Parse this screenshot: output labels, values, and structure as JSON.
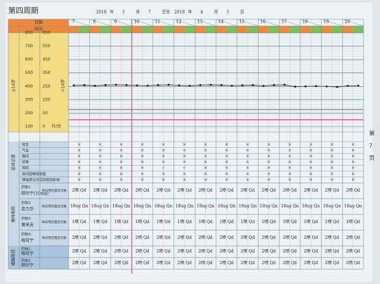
{
  "header": {
    "title": "第四周期",
    "date_parts": [
      "2018",
      "年",
      "3",
      "月",
      "7",
      "日至",
      "2018",
      "年",
      "4",
      "月",
      "3",
      "日"
    ]
  },
  "table": {
    "date_label": "日期",
    "time_label": "时间",
    "days": [
      "7",
      "8",
      "9",
      "10",
      "11",
      "12",
      "13",
      "14",
      "15",
      "16",
      "17",
      "18",
      "19",
      "20"
    ]
  },
  "peak_flow": {
    "axis_label": "≥14岁",
    "axis2_label": "<14岁",
    "unit": "升/分",
    "ylim": [
      100,
      800
    ],
    "yticks": [
      800,
      700,
      600,
      500,
      400,
      300,
      200,
      100
    ],
    "y2_labels": [
      "650",
      "550",
      "450",
      "350",
      "250",
      "150",
      "50",
      "0"
    ],
    "values": [
      408,
      410,
      405,
      410,
      412,
      410,
      408,
      406,
      410,
      412,
      408,
      405,
      410,
      412,
      410,
      406,
      408,
      410,
      404,
      410,
      412,
      398,
      400,
      402,
      400,
      396,
      404,
      406
    ]
  },
  "symptoms": {
    "section": "症状记录",
    "rows": [
      {
        "label": "喘息",
        "marks": [
          "×",
          "×",
          "×",
          "×",
          "×",
          "×",
          "×",
          "×",
          "×",
          "×",
          "×",
          "×",
          "×",
          "×"
        ]
      },
      {
        "label": "气急",
        "marks": [
          "×",
          "×",
          "×",
          "×",
          "×",
          "×",
          "×",
          "×",
          "×",
          "×",
          "×",
          "×",
          "×",
          "×"
        ]
      },
      {
        "label": "胸闷",
        "marks": [
          "×",
          "×",
          "×",
          "×",
          "×",
          "×",
          "×",
          "×",
          "×",
          "×",
          "×",
          "×",
          "×",
          "×"
        ]
      },
      {
        "label": "咳嗽",
        "marks": [
          "×",
          "×",
          "×",
          "×",
          "×",
          "×",
          "×",
          "×",
          "×",
          "×",
          "×",
          "×",
          "×",
          "×"
        ]
      },
      {
        "label": "喘鸣",
        "marks": [
          "×",
          "×",
          "×",
          "×",
          "√",
          "√",
          "×",
          "×",
          "×",
          "×",
          "×",
          "×",
          "×",
          "×"
        ]
      },
      {
        "label": "夜间因哮喘憋醒",
        "marks": [
          "×",
          "×",
          "×",
          "×",
          "×",
          "×",
          "×",
          "×",
          "×",
          "×",
          "×",
          "×",
          "×",
          "×"
        ]
      },
      {
        "label": "哮喘使日间活动受到影响",
        "marks": [
          "×",
          "×",
          "×",
          "×",
          "×",
          "×",
          "×",
          "×",
          "×",
          "×",
          "×",
          "×",
          "×",
          "×"
        ]
      }
    ]
  },
  "maintenance": {
    "section": "维持用药",
    "note": "每日用药量及次数",
    "rows": [
      {
        "drug": "药物1:",
        "name": "顺尔宁(10mg)",
        "entries": [
          "2喷 Qd",
          "2喷 Qd",
          "2喷 Qd",
          "2喷 Qd",
          "2喷 Qd",
          "2喷 Qd",
          "2喷 Qd",
          "2喷 Qd",
          "2喷 Qd",
          "2喷 Qd",
          "2喷 Qd",
          "2喷 Qd",
          "2喷 Qd",
          "2喷 Qd"
        ]
      },
      {
        "drug": "药物2:",
        "name": "思力华",
        "entries": [
          "18ug Qn",
          "18ug Qn",
          "18ug Qn",
          "18ug Qn",
          "18ug Qn",
          "18ug Qn",
          "18ug Qn",
          "18ug Qn",
          "18ug Qn",
          "18ug Qn",
          "18ug Qn",
          "18ug Qn",
          "18ug Qn",
          "18ug Qn"
        ]
      },
      {
        "drug": "药物3:",
        "name": "普米克",
        "entries": [
          "1喷 Qd",
          "1喷 Qd",
          "1喷 Qd",
          "1喷 Qd",
          "1喷 Qd",
          "1喷 Qd",
          "1喷 Qd",
          "1喷 Qd",
          "1喷 Qd",
          "1喷 Qd",
          "1喷 Qd",
          "1喷 Qd",
          "1喷 Qd",
          "1喷 Qd"
        ]
      },
      {
        "drug": "药物4:",
        "name": "喘可宁",
        "entries": [
          "2喷 Qd",
          "2喷 Qd",
          "2喷 Qd",
          "2喷 Qd",
          "2喷 Qd",
          "2喷 Qd",
          "2喷 Qd",
          "2喷 Qd",
          "2喷 Qd",
          "2喷 Qd",
          "2喷 Qd",
          "2喷 Qd",
          "2喷 Qd",
          "2喷 Qd"
        ]
      }
    ]
  },
  "relief": {
    "section": "缓解用药",
    "rows": [
      {
        "drug": "药物1:",
        "name": "喘可宁",
        "entries": [
          "2喷 Qd",
          "2喷 Qd",
          "2喷 Qd",
          "2喷 Qd",
          "2喷 Qd",
          "2喷 Qd",
          "2喷 Qd",
          "2喷 Qd",
          "2喷 Qd",
          "2喷 Qd",
          "2喷 Qd",
          "2喷 Qd",
          "2喷 Qd",
          "2喷 Qd"
        ]
      },
      {
        "drug": "药物2:",
        "name": "顺尔宁",
        "entries": [
          "2喷 Qd",
          "2喷 Qd",
          "2喷 Qd",
          "2喷 Qd",
          "2喷 Qd",
          "2喷 Qd",
          "2喷 Qd",
          "2喷 Qd",
          "2喷 Qd",
          "2喷 Qd",
          "2喷 Qd",
          "2喷 Qd",
          "2喷 Qd",
          "2喷 Qd"
        ]
      }
    ]
  },
  "page_note": {
    "prefix": "第",
    "number": "7",
    "suffix": "页"
  }
}
